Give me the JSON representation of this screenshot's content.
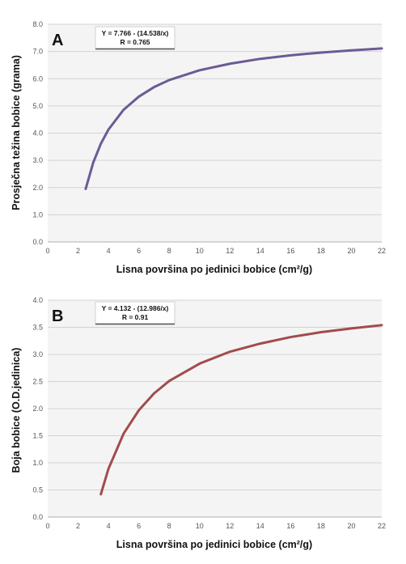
{
  "chart_data": [
    {
      "type": "line",
      "panel": "A",
      "xlabel": "Lisna površina po jedinici bobice (cm²/g)",
      "ylabel": "Prosječna težina bobice (grama)",
      "xlim": [
        0,
        22
      ],
      "ylim": [
        0,
        8
      ],
      "xticks": [
        0,
        2,
        4,
        6,
        8,
        10,
        12,
        14,
        16,
        18,
        20,
        22
      ],
      "yticks": [
        "0.0",
        "1.0",
        "2.0",
        "3.0",
        "4.0",
        "5.0",
        "6.0",
        "7.0",
        "8.0"
      ],
      "grid": "horizontal",
      "equation": "Y = 7.766 - (14.538/x)",
      "r_value": "R = 0.765",
      "color": "#6b5b95",
      "series": [
        {
          "x": [
            2.5,
            3.0,
            3.5,
            4.0,
            5.0,
            6.0,
            7.0,
            8.0,
            10.0,
            12.0,
            14.0,
            16.0,
            18.0,
            20.0,
            22.0
          ],
          "y": [
            1.95,
            2.92,
            3.61,
            4.13,
            4.86,
            5.34,
            5.69,
            5.95,
            6.31,
            6.55,
            6.73,
            6.86,
            6.96,
            7.04,
            7.11
          ]
        }
      ]
    },
    {
      "type": "line",
      "panel": "B",
      "xlabel": "Lisna površina po jedinici bobice (cm²/g)",
      "ylabel": "Boja bobice (O.D.jedinica)",
      "xlim": [
        0,
        22
      ],
      "ylim": [
        0,
        4
      ],
      "xticks": [
        0,
        2,
        4,
        6,
        8,
        10,
        12,
        14,
        16,
        18,
        20,
        22
      ],
      "yticks": [
        "0.0",
        "0.5",
        "1.0",
        "1.5",
        "2.0",
        "2.5",
        "3.0",
        "3.5",
        "4.0"
      ],
      "grid": "horizontal",
      "equation": "Y = 4.132 - (12.986/x)",
      "r_value": "R = 0.91",
      "color": "#a24b4b",
      "series": [
        {
          "x": [
            3.5,
            4.0,
            5.0,
            6.0,
            7.0,
            8.0,
            10.0,
            12.0,
            14.0,
            16.0,
            18.0,
            20.0,
            22.0
          ],
          "y": [
            0.42,
            0.89,
            1.54,
            1.97,
            2.28,
            2.51,
            2.83,
            3.05,
            3.2,
            3.32,
            3.41,
            3.48,
            3.54
          ]
        }
      ]
    }
  ]
}
